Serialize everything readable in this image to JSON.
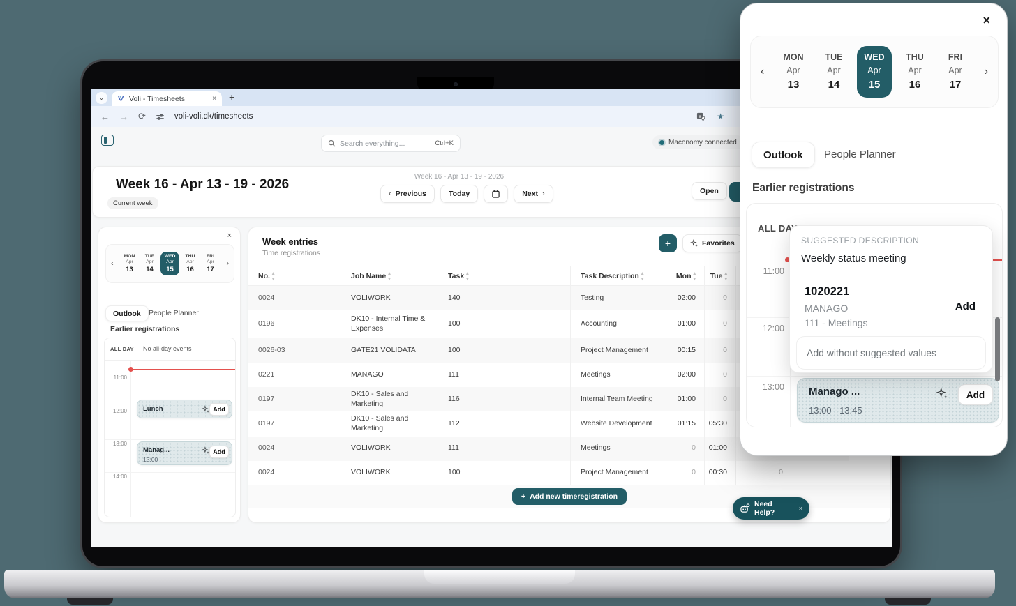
{
  "colors": {
    "teal": "#235d67",
    "page_bg": "#4e6a72",
    "red_line": "#e4514e"
  },
  "icons": {
    "tab_chevron": "⌄",
    "close": "×",
    "new_tab": "+",
    "back": "←",
    "forward": "→",
    "reload": "⟳",
    "star": "★",
    "chevron_left": "‹",
    "chevron_right": "›",
    "plus": "+",
    "sort": "▲▼"
  },
  "browser": {
    "tab_title": "Voli - Timesheets",
    "url": "voli-voli.dk/timesheets"
  },
  "app": {
    "search": {
      "placeholder": "Search everything...",
      "shortcut": "Ctrl+K"
    },
    "connection": {
      "label": "Maconomy connected"
    },
    "week_header": {
      "title": "Week 16 - Apr 13 - 19 - 2026",
      "badge": "Current week",
      "nav_title": "Week 16 - Apr 13 - 19 - 2026",
      "previous": "Previous",
      "today": "Today",
      "next": "Next",
      "open": "Open"
    },
    "planner": {
      "days": [
        {
          "dow": "MON",
          "month": "Apr",
          "date": "13"
        },
        {
          "dow": "TUE",
          "month": "Apr",
          "date": "14"
        },
        {
          "dow": "WED",
          "month": "Apr",
          "date": "15"
        },
        {
          "dow": "THU",
          "month": "Apr",
          "date": "16"
        },
        {
          "dow": "FRI",
          "month": "Apr",
          "date": "17"
        }
      ],
      "tabs": {
        "outlook": "Outlook",
        "people_planner": "People Planner"
      },
      "section_title": "Earlier registrations",
      "all_day": "ALL DAY",
      "no_all_day": "No all-day events",
      "times": [
        "11:00",
        "12:00",
        "13:00",
        "14:00"
      ],
      "events": [
        {
          "title": "Lunch",
          "time_range": "",
          "add": "Add"
        },
        {
          "title": "Manag...",
          "time_range": "13:00 -",
          "add": "Add"
        }
      ]
    },
    "week_entries": {
      "title": "Week entries",
      "subtitle": "Time registrations",
      "favorites": "Favorites",
      "columns": {
        "no": "No.",
        "job_name": "Job Name",
        "task": "Task",
        "task_description": "Task Description",
        "mon": "Mon",
        "tue": "Tue"
      },
      "rows": [
        {
          "no": "0024",
          "job": "VOLIWORK",
          "task": "140",
          "desc": "Testing",
          "mon": "02:00",
          "tue": "0",
          "wed": ""
        },
        {
          "no": "0196",
          "job": "DK10 - Internal Time & Expenses",
          "task": "100",
          "desc": "Accounting",
          "mon": "01:00",
          "tue": "0",
          "wed": ""
        },
        {
          "no": "0026-03",
          "job": "GATE21 VOLIDATA",
          "task": "100",
          "desc": "Project Management",
          "mon": "00:15",
          "tue": "0",
          "wed": ""
        },
        {
          "no": "0221",
          "job": "MANAGO",
          "task": "111",
          "desc": "Meetings",
          "mon": "02:00",
          "tue": "0",
          "wed": ""
        },
        {
          "no": "0197",
          "job": "DK10 - Sales and Marketing",
          "task": "116",
          "desc": "Internal Team Meeting",
          "mon": "01:00",
          "tue": "0",
          "wed": ""
        },
        {
          "no": "0197",
          "job": "DK10 - Sales and Marketing",
          "task": "112",
          "desc": "Website Development",
          "mon": "01:15",
          "tue": "05:30",
          "wed": ""
        },
        {
          "no": "0024",
          "job": "VOLIWORK",
          "task": "111",
          "desc": "Meetings",
          "mon": "0",
          "tue": "01:00",
          "wed": ""
        },
        {
          "no": "0024",
          "job": "VOLIWORK",
          "task": "100",
          "desc": "Project Management",
          "mon": "0",
          "tue": "00:30",
          "wed": "0"
        }
      ],
      "add_button": "Add new timeregistration"
    },
    "help": {
      "label": "Need Help?"
    }
  },
  "overlay": {
    "days": [
      {
        "dow": "MON",
        "month": "Apr",
        "date": "13"
      },
      {
        "dow": "TUE",
        "month": "Apr",
        "date": "14"
      },
      {
        "dow": "WED",
        "month": "Apr",
        "date": "15"
      },
      {
        "dow": "THU",
        "month": "Apr",
        "date": "16"
      },
      {
        "dow": "FRI",
        "month": "Apr",
        "date": "17"
      }
    ],
    "tabs": {
      "outlook": "Outlook",
      "people_planner": "People Planner"
    },
    "section_title": "Earlier registrations",
    "all_day": "ALL DAY",
    "times": [
      "11:00",
      "12:00",
      "13:00"
    ],
    "suggestion": {
      "label": "SUGGESTED DESCRIPTION",
      "description": "Weekly status meeting",
      "job_no": "1020221",
      "job_name": "MANAGO",
      "task": "111 - Meetings",
      "add": "Add",
      "add_without": "Add without suggested values"
    },
    "event": {
      "title": "Manago ...",
      "time_range": "13:00 - 13:45",
      "add": "Add"
    }
  }
}
